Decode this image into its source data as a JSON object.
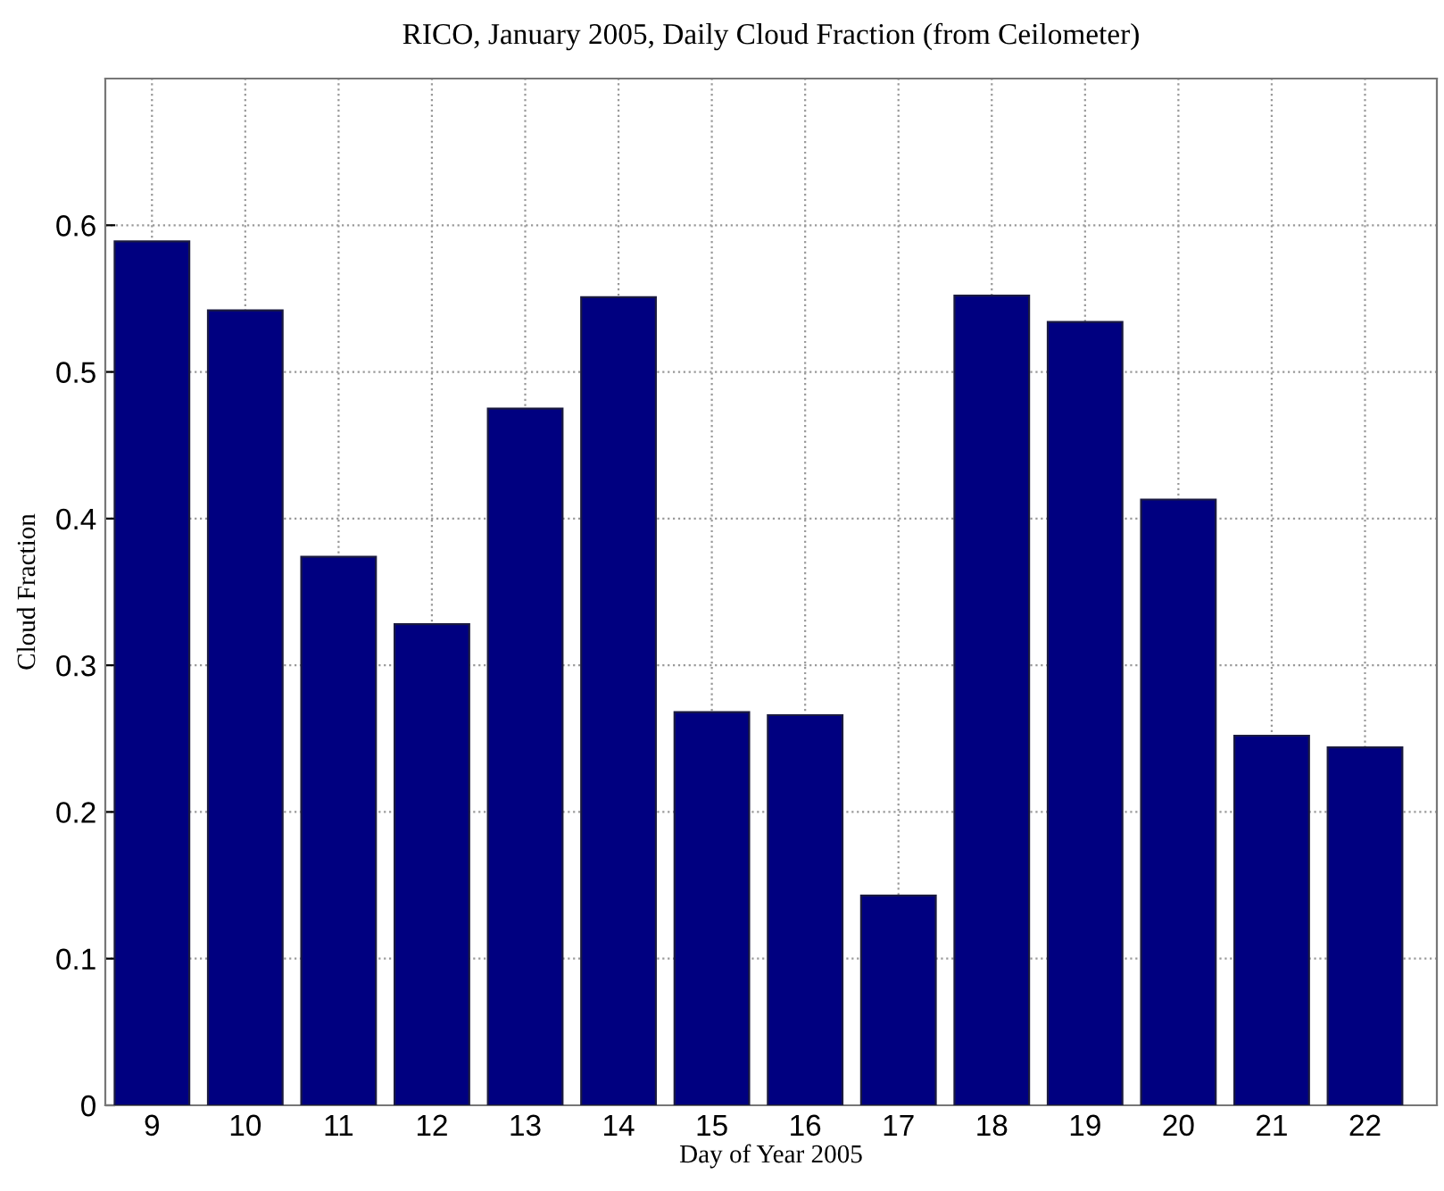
{
  "chart_data": {
    "type": "bar",
    "title": "RICO, January 2005, Daily Cloud Fraction (from Ceilometer)",
    "xlabel": "Day of Year 2005",
    "ylabel": "Cloud Fraction",
    "categories": [
      "9",
      "10",
      "11",
      "12",
      "13",
      "14",
      "15",
      "16",
      "17",
      "18",
      "19",
      "20",
      "21",
      "22"
    ],
    "values": [
      0.589,
      0.542,
      0.374,
      0.328,
      0.475,
      0.551,
      0.268,
      0.266,
      0.143,
      0.552,
      0.534,
      0.413,
      0.252,
      0.244
    ],
    "color": "#000080",
    "ylim": [
      0,
      0.7
    ],
    "yticks": [
      0,
      0.1,
      0.2,
      0.3,
      0.4,
      0.5,
      0.6
    ],
    "grid": true
  }
}
